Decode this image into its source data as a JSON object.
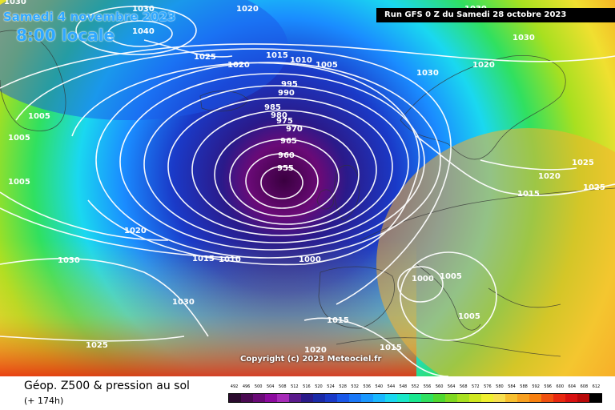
{
  "map": {
    "date_text": "Samedi 4 novembre 2023",
    "time_text": "8:00 locale",
    "run_text": "Run GFS 0 Z du Samedi 28 octobre 2023",
    "copyright": "Copyright (c) 2023 Meteociel.fr",
    "isobar_labels": [
      {
        "text": "1030"
      },
      {
        "text": "1040"
      },
      {
        "text": "1030"
      },
      {
        "text": "1020"
      },
      {
        "text": "1025"
      },
      {
        "text": "1020"
      },
      {
        "text": "1015"
      },
      {
        "text": "1010"
      },
      {
        "text": "1005"
      },
      {
        "text": "995"
      },
      {
        "text": "990"
      },
      {
        "text": "985"
      },
      {
        "text": "980"
      },
      {
        "text": "975"
      },
      {
        "text": "970"
      },
      {
        "text": "965"
      },
      {
        "text": "960"
      },
      {
        "text": "955"
      },
      {
        "text": "1005"
      },
      {
        "text": "1005"
      },
      {
        "text": "1005"
      },
      {
        "text": "1020"
      },
      {
        "text": "1030"
      },
      {
        "text": "1015"
      },
      {
        "text": "1010"
      },
      {
        "text": "1000"
      },
      {
        "text": "1000"
      },
      {
        "text": "1005"
      },
      {
        "text": "1005"
      },
      {
        "text": "1015"
      },
      {
        "text": "1015"
      },
      {
        "text": "1025"
      },
      {
        "text": "1020"
      },
      {
        "text": "1015"
      },
      {
        "text": "1025"
      },
      {
        "text": "1025"
      },
      {
        "text": "1030"
      },
      {
        "text": "1020"
      },
      {
        "text": "1030"
      },
      {
        "text": "1020"
      },
      {
        "text": "1030"
      },
      {
        "text": "1030"
      }
    ]
  },
  "footer": {
    "title": "Géop. Z500 & pression au sol",
    "lead_time": "(+ 174h)"
  },
  "legend": {
    "labels": [
      "492",
      "496",
      "500",
      "504",
      "508",
      "512",
      "516",
      "520",
      "524",
      "528",
      "532",
      "536",
      "540",
      "544",
      "548",
      "552",
      "556",
      "560",
      "564",
      "568",
      "572",
      "576",
      "580",
      "584",
      "588",
      "592",
      "596",
      "600",
      "604",
      "608",
      "612"
    ],
    "colors": [
      "#2b0b2e",
      "#4a0a52",
      "#6a0a77",
      "#8c0a9e",
      "#a62bb8",
      "#5a1a8c",
      "#2a1a8a",
      "#1a2aa8",
      "#1a3ac8",
      "#1a58e8",
      "#1a78f8",
      "#1a98ff",
      "#1ab8ff",
      "#1ad8f0",
      "#1ae8c8",
      "#1ae890",
      "#30e060",
      "#50d830",
      "#80d820",
      "#a8e020",
      "#d0e820",
      "#f0f030",
      "#f8e050",
      "#f8c030",
      "#f8a020",
      "#f88010",
      "#f05010",
      "#e82810",
      "#d81010",
      "#b80808",
      "#000000"
    ]
  }
}
